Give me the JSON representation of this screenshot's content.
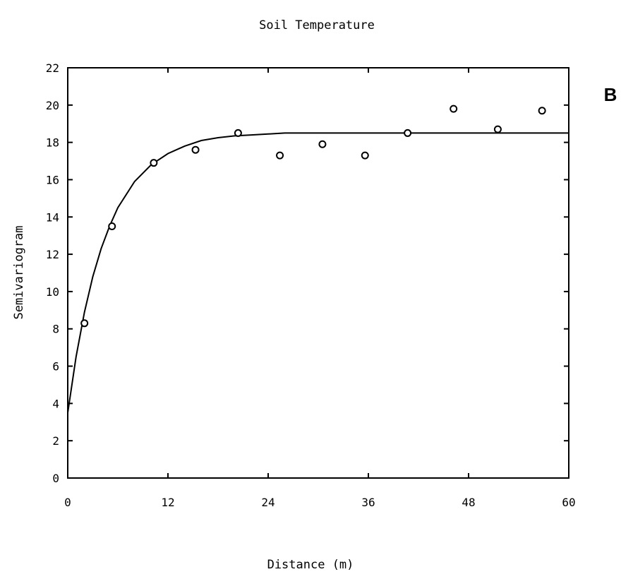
{
  "panel_label": "B",
  "chart_data": {
    "type": "scatter",
    "title": "Soil Temperature",
    "xlabel": "Distance (m)",
    "ylabel": "Semivariogram",
    "xlim": [
      0,
      60
    ],
    "ylim": [
      0,
      22
    ],
    "x_ticks": [
      0,
      12,
      24,
      36,
      48,
      60
    ],
    "x_tick_labels": [
      "0",
      "12",
      "24",
      "36",
      "48",
      "60"
    ],
    "y_ticks": [
      0,
      2,
      4,
      6,
      8,
      10,
      12,
      14,
      16,
      18,
      20,
      22
    ],
    "y_tick_labels": [
      "0",
      "2",
      "4",
      "6",
      "8",
      "10",
      "12",
      "14",
      "16",
      "18",
      "20",
      "22"
    ],
    "grid": false,
    "legend": "none",
    "series": [
      {
        "kind": "points",
        "marker": "circle",
        "x": [
          2,
          5.3,
          10.3,
          15.3,
          20.4,
          25.4,
          30.5,
          35.6,
          40.7,
          46.2,
          51.5,
          56.8
        ],
        "y": [
          8.3,
          13.5,
          16.9,
          17.6,
          18.5,
          17.3,
          17.9,
          17.3,
          18.5,
          19.8,
          18.7,
          19.7
        ]
      },
      {
        "kind": "fitted-curve",
        "x": [
          0,
          1,
          2,
          3,
          4,
          5,
          6,
          8,
          10,
          12,
          14,
          16,
          18,
          20,
          22,
          24,
          26,
          30,
          36,
          48,
          60
        ],
        "y": [
          3.5,
          6.5,
          8.9,
          10.8,
          12.3,
          13.5,
          14.5,
          15.9,
          16.8,
          17.4,
          17.8,
          18.1,
          18.25,
          18.35,
          18.4,
          18.45,
          18.5,
          18.5,
          18.5,
          18.5,
          18.5
        ]
      }
    ]
  }
}
